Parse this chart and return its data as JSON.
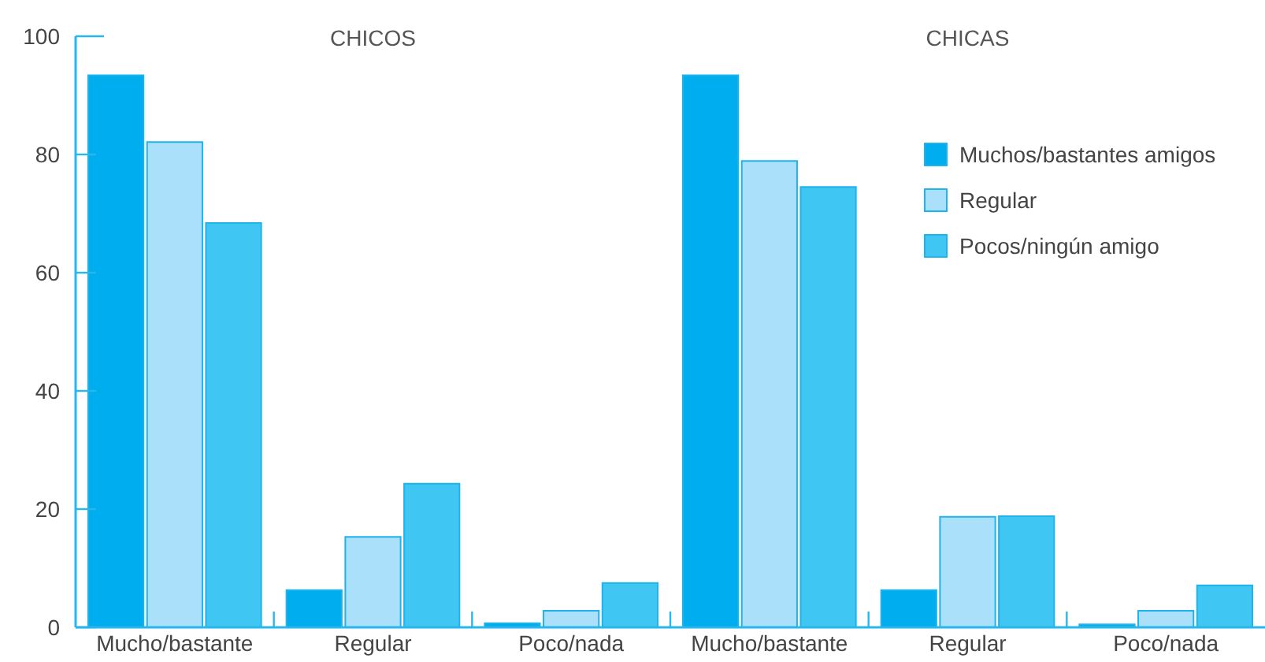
{
  "chart_data": {
    "type": "bar",
    "categories": [
      "Mucho/bastante",
      "Regular",
      "Poco/nada",
      "Mucho/bastante",
      "Regular",
      "Poco/nada"
    ],
    "series": [
      {
        "name": "Muchos/bastantes amigos",
        "color": "#00aeef",
        "values": [
          93.4,
          6.3,
          0.7,
          93.4,
          6.3,
          0.5
        ]
      },
      {
        "name": "Regular",
        "color": "#aae0fa",
        "values": [
          82.1,
          15.3,
          2.8,
          78.9,
          18.7,
          2.8
        ]
      },
      {
        "name": "Pocos/ningún amigo",
        "color": "#40c6f2",
        "values": [
          68.4,
          24.3,
          7.5,
          74.5,
          18.8,
          7.1
        ]
      }
    ],
    "annotations": [
      "CHICOS",
      "CHICAS"
    ],
    "ylim": [
      0,
      100
    ],
    "yticks": [
      0,
      20,
      40,
      60,
      80,
      100
    ],
    "grid": false,
    "legend": "top right"
  }
}
